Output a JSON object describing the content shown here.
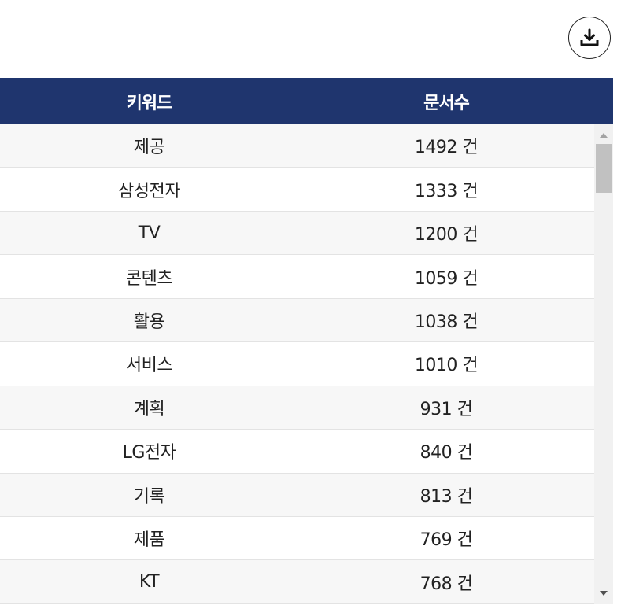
{
  "toolbar": {
    "download_icon": "download-icon"
  },
  "table": {
    "columns": [
      "키워드",
      "문서수"
    ],
    "rows": [
      {
        "keyword": "제공",
        "count": "1492 건"
      },
      {
        "keyword": "삼성전자",
        "count": "1333 건"
      },
      {
        "keyword": "TV",
        "count": "1200 건"
      },
      {
        "keyword": "콘텐츠",
        "count": "1059 건"
      },
      {
        "keyword": "활용",
        "count": "1038 건"
      },
      {
        "keyword": "서비스",
        "count": "1010 건"
      },
      {
        "keyword": "계획",
        "count": "931 건"
      },
      {
        "keyword": "LG전자",
        "count": "840 건"
      },
      {
        "keyword": "기록",
        "count": "813 건"
      },
      {
        "keyword": "제품",
        "count": "769 건"
      },
      {
        "keyword": "KT",
        "count": "768 건"
      }
    ]
  },
  "colors": {
    "header_bg": "#1f356e",
    "header_text": "#ffffff",
    "row_alt_bg": "#f7f7f7"
  }
}
